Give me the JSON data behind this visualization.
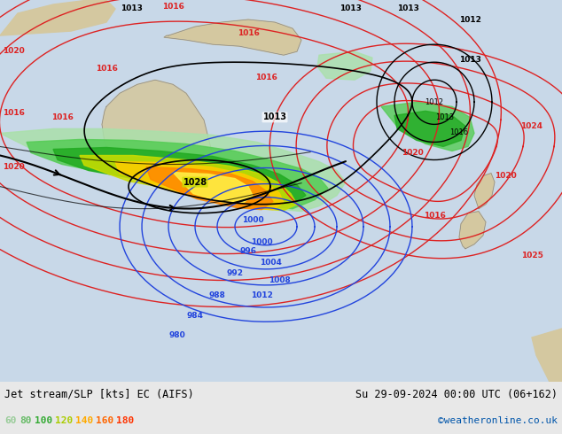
{
  "title_left": "Jet stream/SLP [kts] EC (AIFS)",
  "title_right": "Su 29-09-2024 00:00 UTC (06+162)",
  "credit": "©weatheronline.co.uk",
  "legend_values": [
    "60",
    "80",
    "100",
    "120",
    "140",
    "160",
    "180"
  ],
  "legend_colors": [
    "#99cc99",
    "#66bb66",
    "#33aa33",
    "#cccc00",
    "#ffaa00",
    "#ff6600",
    "#ff0000"
  ],
  "bg_color": "#e8e8e8",
  "map_bg": "#d0d8e0",
  "title_color": "#000000",
  "credit_color": "#0055aa",
  "bottom_bar_color": "#c8c8c8"
}
